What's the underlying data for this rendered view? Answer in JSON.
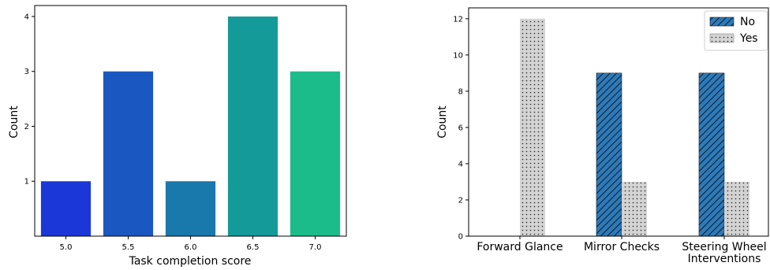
{
  "chart_data": [
    {
      "type": "bar",
      "categories": [
        "5.0",
        "5.5",
        "6.0",
        "6.5",
        "7.0"
      ],
      "values": [
        1,
        3,
        1,
        4,
        3
      ],
      "colors": [
        "#1c37d8",
        "#1b57c0",
        "#1a79ac",
        "#149a99",
        "#1cbb8a"
      ],
      "xlabel": "Task completion score",
      "ylabel": "Count",
      "ylim": [
        0,
        4.2
      ],
      "yticks": [
        "1",
        "2",
        "3",
        "4"
      ],
      "grid": false,
      "legend": false
    },
    {
      "type": "bar",
      "categories": [
        "Forward Glance",
        "Mirror Checks",
        "Steering Wheel Interventions"
      ],
      "category_lines": [
        [
          "Forward Glance"
        ],
        [
          "Mirror Checks"
        ],
        [
          "Steering Wheel",
          "Interventions"
        ]
      ],
      "series": [
        {
          "name": "No",
          "values": [
            0,
            9,
            9
          ],
          "color": "#2e7ab8",
          "hatch": "diagonal"
        },
        {
          "name": "Yes",
          "values": [
            12,
            3,
            3
          ],
          "color": "#d3d3d3",
          "hatch": "dots"
        }
      ],
      "xlabel": "",
      "ylabel": "Count",
      "ylim": [
        0,
        12.6
      ],
      "yticks": [
        "0",
        "2",
        "4",
        "6",
        "8",
        "10",
        "12"
      ],
      "grid": false,
      "legend": "top-right"
    }
  ]
}
